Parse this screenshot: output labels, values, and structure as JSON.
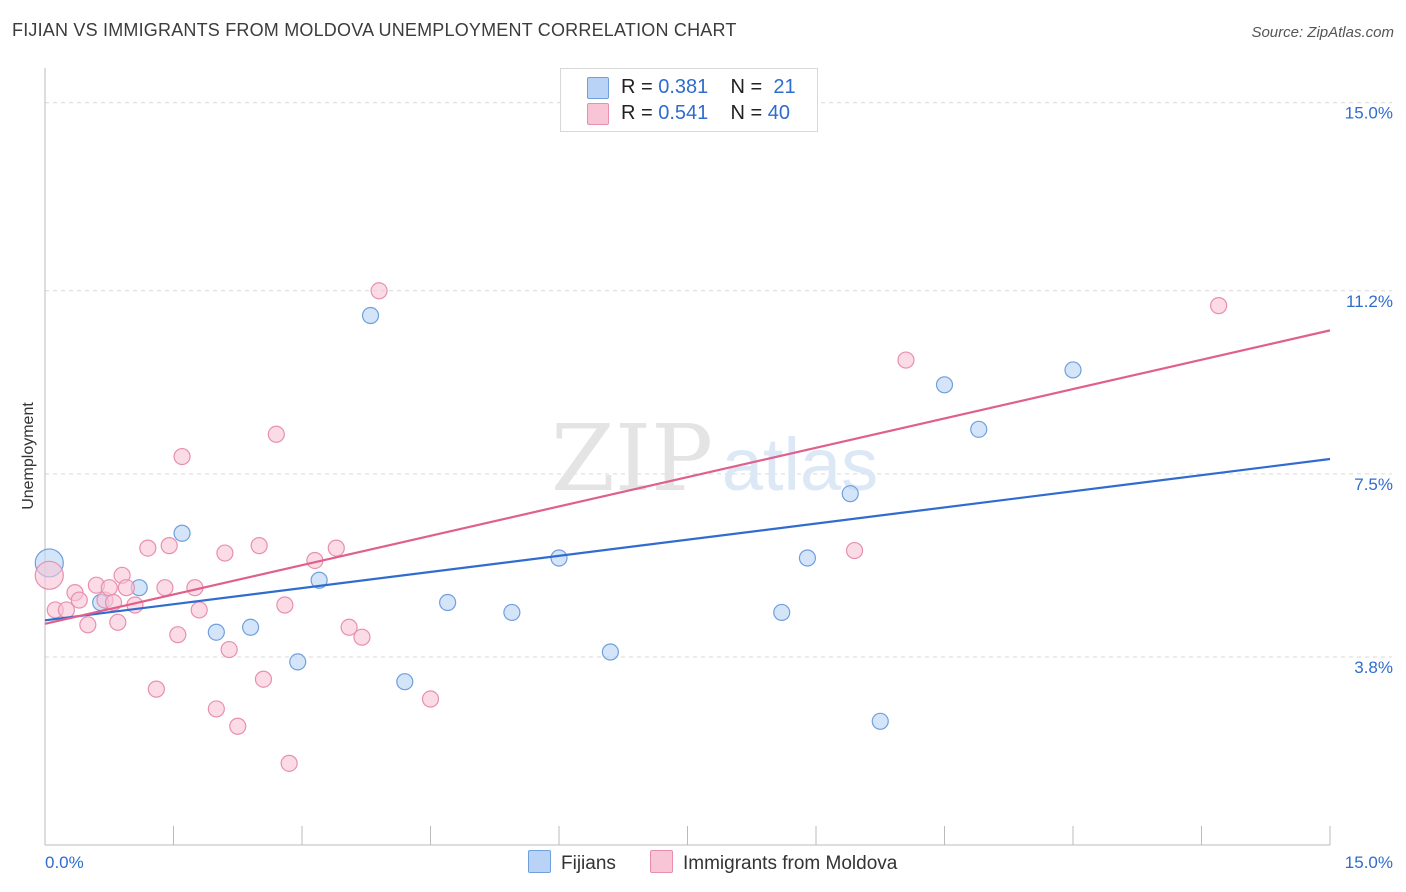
{
  "title": "FIJIAN VS IMMIGRANTS FROM MOLDOVA UNEMPLOYMENT CORRELATION CHART",
  "source": "Source: ZipAtlas.com",
  "watermark": {
    "zip": "ZIP",
    "atlas": "atlas"
  },
  "legend_top": {
    "rows": [
      {
        "r_label": "R =",
        "r_value": "0.381",
        "n_label": "N =",
        "n_value": "21"
      },
      {
        "r_label": "R =",
        "r_value": "0.541",
        "n_label": "N =",
        "n_value": "40"
      }
    ]
  },
  "legend_bottom": {
    "series1": "Fijians",
    "series2": "Immigrants from Moldova"
  },
  "colors": {
    "blue_fill": "#b8d3f5",
    "blue_stroke": "#6f9fdd",
    "blue_line": "#2f6ccf",
    "pink_fill": "#f8c5d6",
    "pink_stroke": "#e98fae",
    "pink_line": "#e0608c",
    "grid": "#d9d9d9",
    "tick_label": "#2f6ccf"
  },
  "chart_data": {
    "type": "scatter",
    "title": "FIJIAN VS IMMIGRANTS FROM MOLDOVA UNEMPLOYMENT CORRELATION CHART",
    "xlabel": "",
    "ylabel": "Unemployment",
    "xlim": [
      0,
      15
    ],
    "ylim": [
      0,
      15.5
    ],
    "x_tick_labels": [
      "0.0%",
      "15.0%"
    ],
    "y_ticks": [
      3.8,
      7.5,
      11.2,
      15.0
    ],
    "y_tick_labels": [
      "3.8%",
      "7.5%",
      "11.2%",
      "15.0%"
    ],
    "series": [
      {
        "name": "Fijians",
        "R": 0.381,
        "N": 21,
        "points": [
          [
            0.05,
            5.7
          ],
          [
            0.65,
            4.9
          ],
          [
            1.1,
            5.2
          ],
          [
            1.6,
            6.3
          ],
          [
            2.0,
            4.3
          ],
          [
            2.4,
            4.4
          ],
          [
            2.95,
            3.7
          ],
          [
            3.2,
            5.35
          ],
          [
            3.8,
            10.7
          ],
          [
            4.2,
            3.3
          ],
          [
            4.7,
            4.9
          ],
          [
            5.45,
            4.7
          ],
          [
            6.0,
            5.8
          ],
          [
            6.6,
            3.9
          ],
          [
            8.6,
            4.7
          ],
          [
            8.9,
            5.8
          ],
          [
            9.4,
            7.1
          ],
          [
            9.75,
            2.5
          ],
          [
            10.5,
            9.3
          ],
          [
            10.9,
            8.4
          ],
          [
            12.0,
            9.6
          ]
        ],
        "trend": {
          "x": [
            0,
            15
          ],
          "y": [
            4.54,
            7.8
          ]
        }
      },
      {
        "name": "Immigrants from Moldova",
        "R": 0.541,
        "N": 40,
        "points": [
          [
            0.05,
            5.45
          ],
          [
            0.12,
            4.75
          ],
          [
            0.25,
            4.75
          ],
          [
            0.35,
            5.1
          ],
          [
            0.4,
            4.95
          ],
          [
            0.5,
            4.45
          ],
          [
            0.6,
            5.25
          ],
          [
            0.7,
            4.95
          ],
          [
            0.75,
            5.2
          ],
          [
            0.8,
            4.9
          ],
          [
            0.85,
            4.5
          ],
          [
            0.9,
            5.45
          ],
          [
            0.95,
            5.2
          ],
          [
            1.05,
            4.85
          ],
          [
            1.2,
            6.0
          ],
          [
            1.3,
            3.15
          ],
          [
            1.45,
            6.05
          ],
          [
            1.55,
            4.25
          ],
          [
            1.6,
            7.85
          ],
          [
            1.75,
            5.2
          ],
          [
            1.8,
            4.75
          ],
          [
            2.0,
            2.75
          ],
          [
            2.1,
            5.9
          ],
          [
            2.15,
            3.95
          ],
          [
            2.25,
            2.4
          ],
          [
            2.5,
            6.05
          ],
          [
            2.55,
            3.35
          ],
          [
            2.7,
            8.3
          ],
          [
            2.8,
            4.85
          ],
          [
            2.85,
            1.65
          ],
          [
            3.15,
            5.75
          ],
          [
            3.4,
            6.0
          ],
          [
            3.55,
            4.4
          ],
          [
            3.7,
            4.2
          ],
          [
            3.9,
            11.2
          ],
          [
            4.5,
            2.95
          ],
          [
            9.45,
            5.95
          ],
          [
            10.05,
            9.8
          ],
          [
            13.7,
            10.9
          ],
          [
            1.4,
            5.2
          ]
        ],
        "trend": {
          "x": [
            0,
            15
          ],
          "y": [
            4.47,
            10.4
          ]
        }
      }
    ]
  }
}
